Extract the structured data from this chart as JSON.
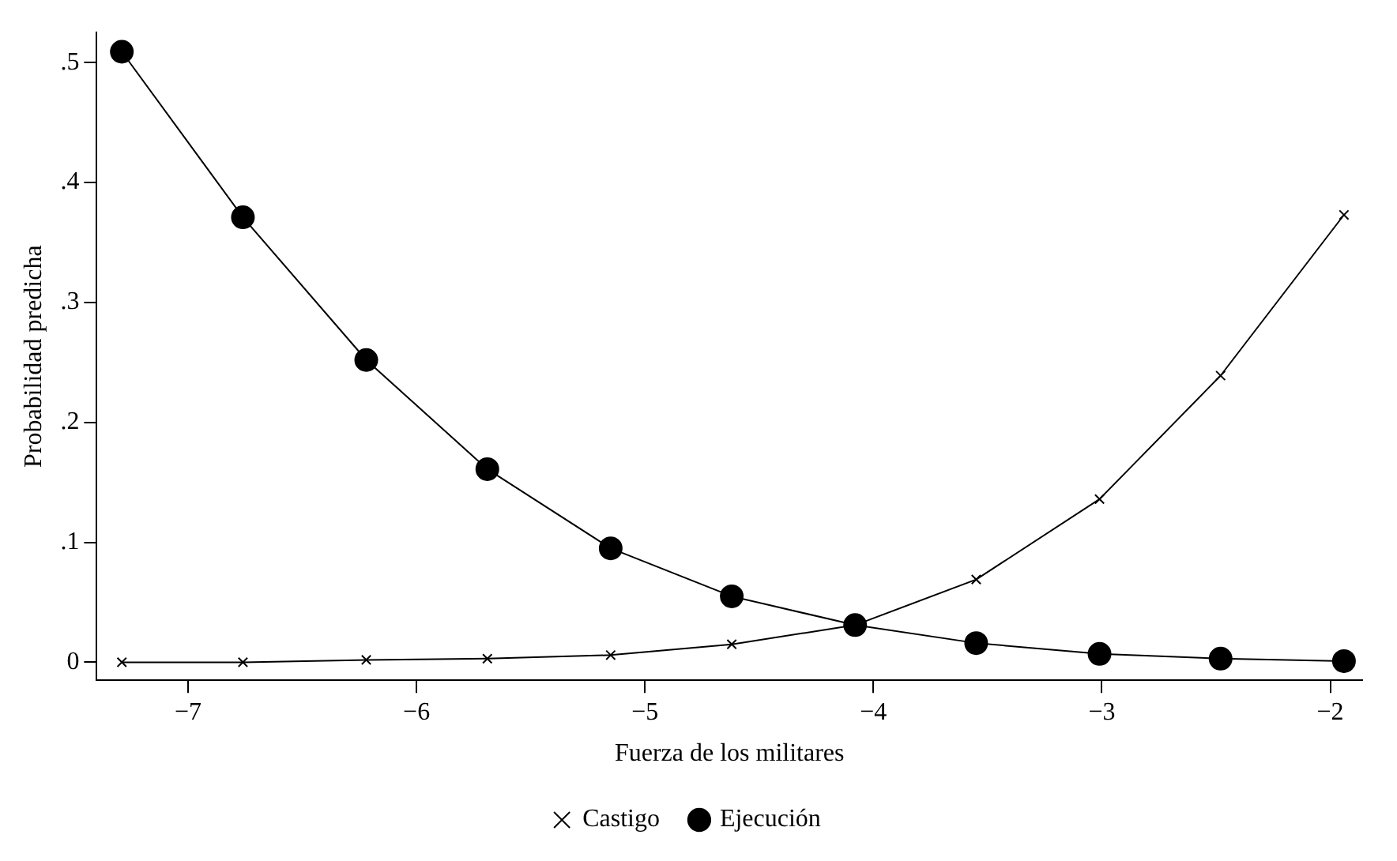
{
  "chart_data": {
    "type": "line",
    "xlabel": "Fuerza de los militares",
    "ylabel": "Probabilidad predicha",
    "x": [
      -7.29,
      -6.76,
      -6.22,
      -5.69,
      -5.15,
      -4.62,
      -4.08,
      -3.55,
      -3.01,
      -2.48,
      -1.94
    ],
    "series": [
      {
        "name": "Castigo",
        "color": "#000000",
        "marker": "cross",
        "values": [
          0,
          0,
          0.002,
          0.003,
          0.006,
          0.015,
          0.031,
          0.069,
          0.136,
          0.239,
          0.373
        ]
      },
      {
        "name": "Ejecución",
        "color": "#000000",
        "marker": "circle",
        "values": [
          0.509,
          0.371,
          0.252,
          0.161,
          0.095,
          0.055,
          0.031,
          0.016,
          0.007,
          0.003,
          0.001
        ]
      }
    ],
    "xlim": [
      -7.4,
      -1.86
    ],
    "xticks": [
      {
        "value": -7,
        "label": "−7"
      },
      {
        "value": -6,
        "label": "−6"
      },
      {
        "value": -5,
        "label": "−5"
      },
      {
        "value": -4,
        "label": "−4"
      },
      {
        "value": -3,
        "label": "−3"
      },
      {
        "value": -2,
        "label": "−2"
      }
    ],
    "ylim": [
      -0.015,
      0.525
    ],
    "yticks": [
      {
        "value": 0,
        "label": "0"
      },
      {
        "value": 0.1,
        "label": ".1"
      },
      {
        "value": 0.2,
        "label": ".2"
      },
      {
        "value": 0.3,
        "label": ".3"
      },
      {
        "value": 0.4,
        "label": ".4"
      },
      {
        "value": 0.5,
        "label": ".5"
      }
    ],
    "grid": false,
    "legend": "bottom",
    "line_style": "solid"
  }
}
